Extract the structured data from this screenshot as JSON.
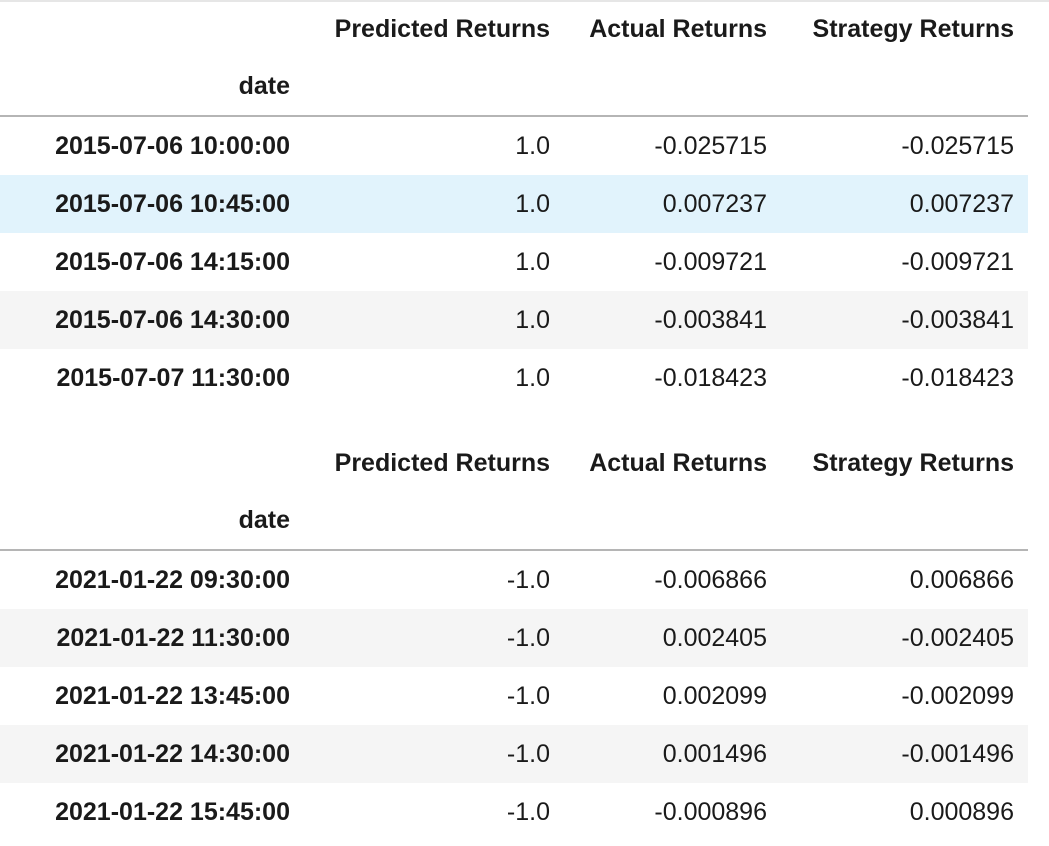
{
  "tables": [
    {
      "columns": [
        "Predicted Returns",
        "Actual Returns",
        "Strategy Returns"
      ],
      "index_name": "date",
      "rows": [
        {
          "date": "2015-07-06 10:00:00",
          "predicted": "1.0",
          "actual": "-0.025715",
          "strategy": "-0.025715"
        },
        {
          "date": "2015-07-06 10:45:00",
          "predicted": "1.0",
          "actual": "0.007237",
          "strategy": "0.007237"
        },
        {
          "date": "2015-07-06 14:15:00",
          "predicted": "1.0",
          "actual": "-0.009721",
          "strategy": "-0.009721"
        },
        {
          "date": "2015-07-06 14:30:00",
          "predicted": "1.0",
          "actual": "-0.003841",
          "strategy": "-0.003841"
        },
        {
          "date": "2015-07-07 11:30:00",
          "predicted": "1.0",
          "actual": "-0.018423",
          "strategy": "-0.018423"
        }
      ]
    },
    {
      "columns": [
        "Predicted Returns",
        "Actual Returns",
        "Strategy Returns"
      ],
      "index_name": "date",
      "rows": [
        {
          "date": "2021-01-22 09:30:00",
          "predicted": "-1.0",
          "actual": "-0.006866",
          "strategy": "0.006866"
        },
        {
          "date": "2021-01-22 11:30:00",
          "predicted": "-1.0",
          "actual": "0.002405",
          "strategy": "-0.002405"
        },
        {
          "date": "2021-01-22 13:45:00",
          "predicted": "-1.0",
          "actual": "0.002099",
          "strategy": "-0.002099"
        },
        {
          "date": "2021-01-22 14:30:00",
          "predicted": "-1.0",
          "actual": "0.001496",
          "strategy": "-0.001496"
        },
        {
          "date": "2021-01-22 15:45:00",
          "predicted": "-1.0",
          "actual": "-0.000896",
          "strategy": "0.000896"
        }
      ]
    }
  ],
  "colors": {
    "row_even": "#f5f5f5",
    "row_hover": "#e1f3fc",
    "header_rule": "#b5b5b5"
  }
}
